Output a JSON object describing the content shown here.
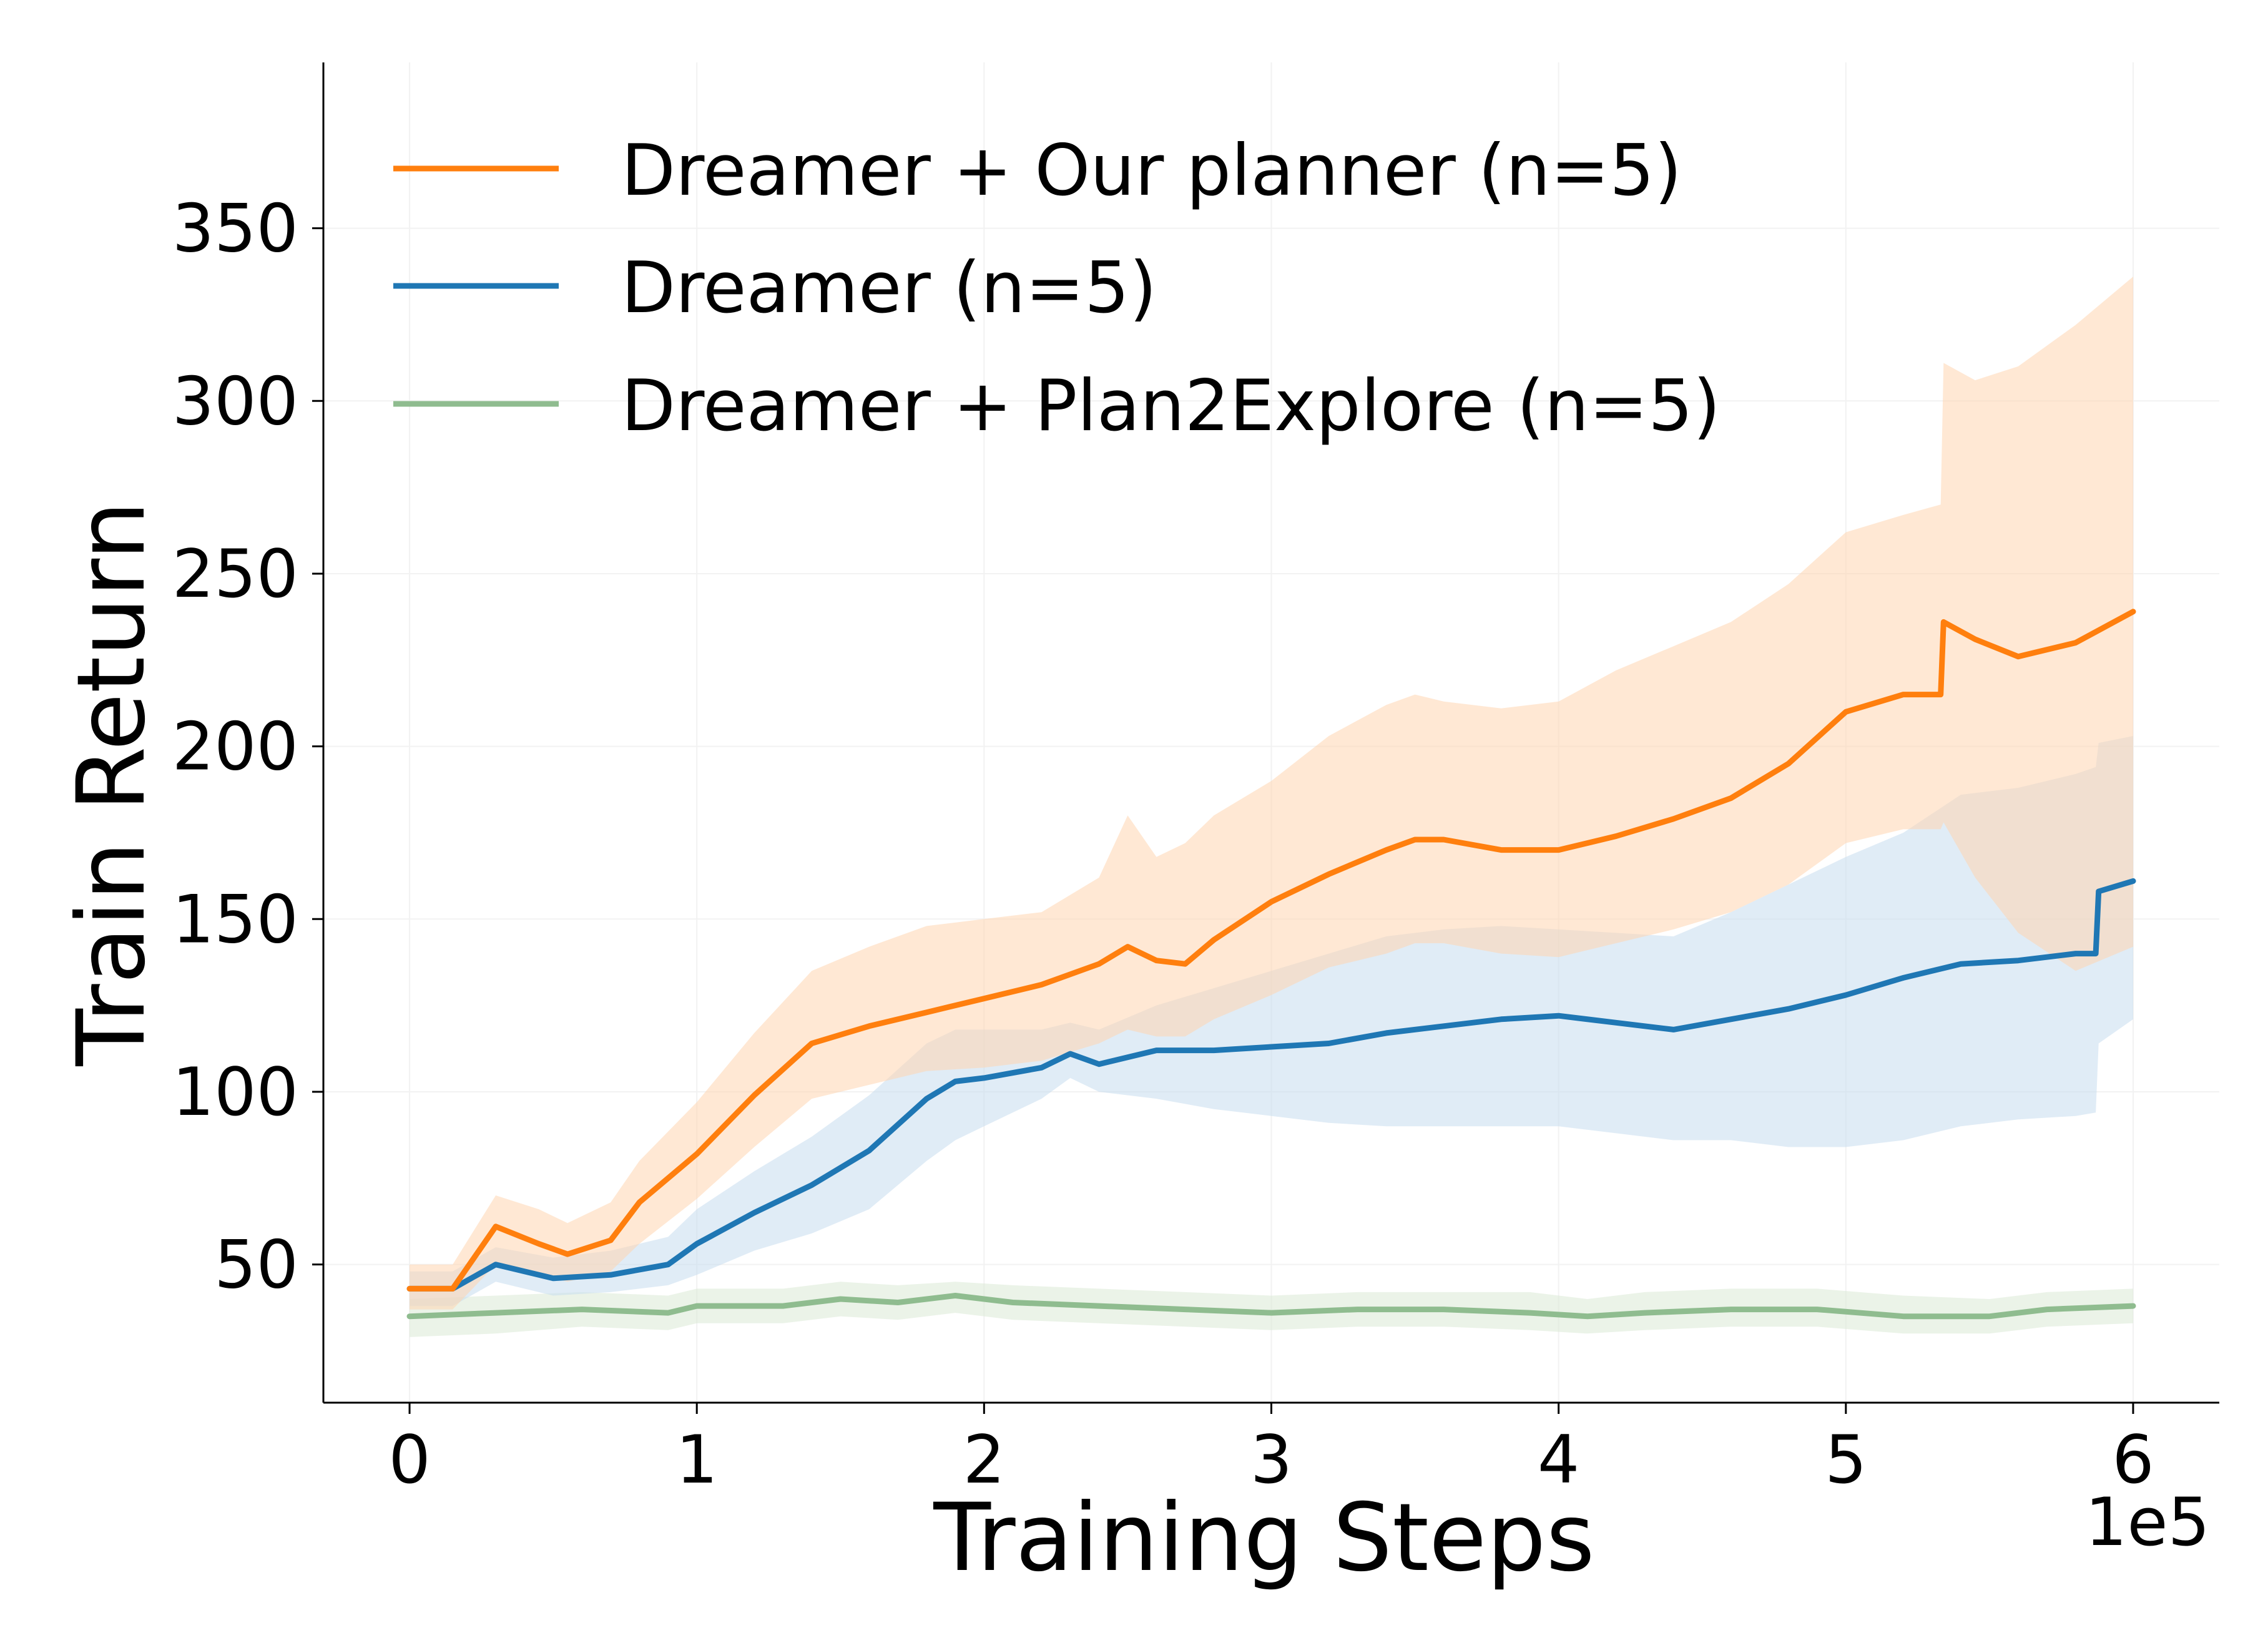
{
  "chart_data": {
    "type": "line",
    "xlabel": "Training Steps",
    "ylabel": "Train Return",
    "x_offset_label": "1e5",
    "xlim": [
      -0.3,
      6.3
    ],
    "ylim": [
      10,
      398
    ],
    "xticks": [
      0,
      1,
      2,
      3,
      4,
      5,
      6
    ],
    "yticks": [
      50,
      100,
      150,
      200,
      250,
      300,
      350
    ],
    "grid": true,
    "legend_position": "top-left",
    "series": [
      {
        "name": "Dreamer + Our planner (n=5)",
        "color": "#ff7f0e",
        "band_color": "#ffd6b0",
        "x": [
          0,
          0.15,
          0.3,
          0.45,
          0.55,
          0.7,
          0.8,
          1.0,
          1.2,
          1.4,
          1.6,
          1.8,
          2.0,
          2.2,
          2.4,
          2.5,
          2.6,
          2.7,
          2.8,
          3.0,
          3.2,
          3.4,
          3.5,
          3.6,
          3.8,
          4.0,
          4.2,
          4.4,
          4.6,
          4.8,
          5.0,
          5.2,
          5.33,
          5.34,
          5.45,
          5.6,
          5.8,
          6.0
        ],
        "y": [
          43,
          43,
          61,
          56,
          53,
          57,
          68,
          82,
          99,
          114,
          119,
          123,
          127,
          131,
          137,
          142,
          138,
          137,
          144,
          155,
          163,
          170,
          173,
          173,
          170,
          170,
          174,
          179,
          185,
          195,
          210,
          215,
          215,
          236,
          231,
          226,
          230,
          239
        ],
        "upper": [
          50,
          50,
          70,
          66,
          62,
          68,
          80,
          97,
          117,
          135,
          142,
          148,
          150,
          152,
          162,
          180,
          168,
          172,
          180,
          190,
          203,
          212,
          215,
          213,
          211,
          213,
          222,
          229,
          236,
          247,
          262,
          267,
          270,
          311,
          306,
          310,
          322,
          336
        ],
        "lower": [
          37,
          37,
          50,
          47,
          45,
          48,
          56,
          69,
          84,
          98,
          102,
          106,
          107,
          109,
          114,
          118,
          116,
          116,
          121,
          128,
          136,
          140,
          143,
          143,
          140,
          139,
          143,
          147,
          152,
          160,
          172,
          176,
          176,
          178,
          162,
          146,
          135,
          142
        ]
      },
      {
        "name": "Dreamer (n=5)",
        "color": "#1f77b4",
        "band_color": "#c6dcef",
        "x": [
          0,
          0.15,
          0.3,
          0.5,
          0.7,
          0.9,
          1.0,
          1.2,
          1.4,
          1.6,
          1.8,
          1.9,
          2.0,
          2.2,
          2.3,
          2.4,
          2.6,
          2.8,
          3.0,
          3.2,
          3.4,
          3.6,
          3.8,
          4.0,
          4.2,
          4.4,
          4.6,
          4.8,
          5.0,
          5.2,
          5.4,
          5.6,
          5.8,
          5.87,
          5.88,
          6.0
        ],
        "y": [
          43,
          43,
          50,
          46,
          47,
          50,
          56,
          65,
          73,
          83,
          98,
          103,
          104,
          107,
          111,
          108,
          112,
          112,
          113,
          114,
          117,
          119,
          121,
          122,
          120,
          118,
          121,
          124,
          128,
          133,
          137,
          138,
          140,
          140,
          158,
          161
        ],
        "upper": [
          48,
          48,
          55,
          52,
          54,
          58,
          66,
          77,
          87,
          99,
          114,
          118,
          118,
          118,
          120,
          118,
          125,
          130,
          135,
          140,
          145,
          147,
          148,
          147,
          146,
          145,
          152,
          160,
          168,
          175,
          186,
          188,
          192,
          194,
          201,
          203
        ],
        "lower": [
          38,
          38,
          45,
          41,
          42,
          44,
          47,
          54,
          59,
          66,
          80,
          86,
          90,
          98,
          104,
          100,
          98,
          95,
          93,
          91,
          90,
          90,
          90,
          90,
          88,
          86,
          86,
          84,
          84,
          86,
          90,
          92,
          93,
          94,
          114,
          121
        ]
      },
      {
        "name": "Dreamer + Plan2Explore (n=5)",
        "color": "#8fbc8f",
        "band_color": "#dbead6",
        "x": [
          0,
          0.3,
          0.6,
          0.9,
          1.0,
          1.3,
          1.5,
          1.7,
          1.9,
          2.1,
          2.4,
          2.7,
          3.0,
          3.3,
          3.6,
          3.9,
          4.1,
          4.3,
          4.6,
          4.9,
          5.2,
          5.5,
          5.7,
          6.0
        ],
        "y": [
          35,
          36,
          37,
          36,
          38,
          38,
          40,
          39,
          41,
          39,
          38,
          37,
          36,
          37,
          37,
          36,
          35,
          36,
          37,
          37,
          35,
          35,
          37,
          38
        ],
        "upper": [
          40,
          41,
          42,
          41,
          43,
          43,
          45,
          44,
          45,
          44,
          43,
          42,
          41,
          42,
          42,
          42,
          40,
          42,
          43,
          43,
          41,
          40,
          42,
          43
        ],
        "lower": [
          29,
          30,
          32,
          31,
          33,
          33,
          35,
          34,
          36,
          34,
          33,
          32,
          31,
          32,
          32,
          31,
          30,
          31,
          32,
          32,
          30,
          30,
          32,
          33
        ]
      }
    ]
  }
}
